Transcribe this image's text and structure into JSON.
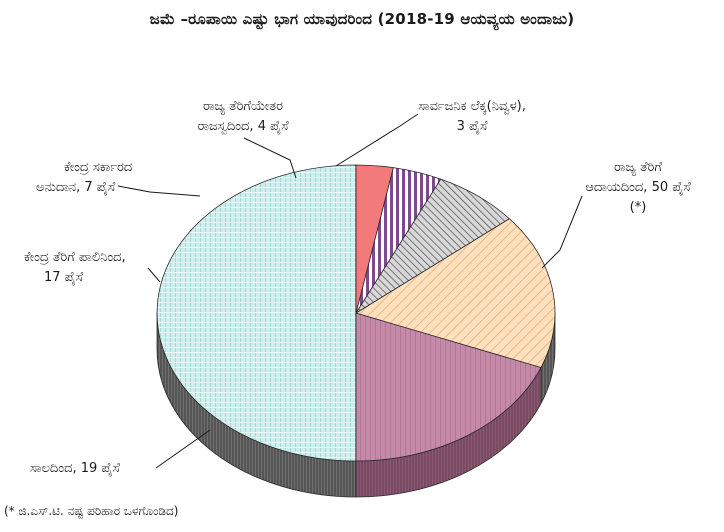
{
  "title": "ಜಮೆ –ರೂಪಾಯಿ ಎಷ್ಟು ಭಾಗ ಯಾವುದರಿಂದ (2018-19 ಆಯವ್ಯಯ ಅಂದಾಜು)",
  "footnote": "(* ಜಿ.ಎಸ್.ಟಿ. ನಷ್ಟ ಪರಿಹಾರ ಒಳಗೊಂಡಿದ)",
  "labels": {
    "state_tax": [
      "ರಾಜ್ಯ ತೆರಿಗೆ",
      "ಆದಾಯದಿಂದ, 50 ಪೈಸೆ",
      "(*)"
    ],
    "borrowings": [
      "ಸಾಲದಿಂದ, 19 ಪೈಸೆ"
    ],
    "central_tax_share": [
      "ಕೇಂದ್ರ ತೆರಿಗೆ ಪಾಲಿನಿಂದ,",
      "17 ಪೈಸೆ"
    ],
    "central_grants": [
      "ಕೇಂದ್ರ ಸರ್ಕಾರದ",
      "ಅನುದಾನ, 7 ಪೈಸೆ"
    ],
    "non_tax_revenue": [
      "ರಾಜ್ಯ ತೆರಿಗೆಯೇತರ",
      "ರಾಜಸ್ವದಿಂದ, 4 ಪೈಸೆ"
    ],
    "public_account": [
      "ಸಾರ್ವಜನಿಕ ಲೆಕ್ಕ(ನಿವ್ವಳ),",
      "3 ಪೈಸೆ"
    ]
  },
  "chart_data": {
    "type": "pie",
    "title": "ಜಮೆ –ರೂಪಾಯಿ ಎಷ್ಟು ಭಾಗ ಯಾವುದರಿಂದ (2018-19 ಆಯವ್ಯಯ ಅಂದಾಜು)",
    "unit": "ಪೈಸೆ",
    "slices": [
      {
        "key": "state_tax",
        "value": 50,
        "color": "#cdeeec"
      },
      {
        "key": "borrowings",
        "value": 19,
        "color": "#c48aa8"
      },
      {
        "key": "central_tax_share",
        "value": 17,
        "color": "#ffd6a8"
      },
      {
        "key": "central_grants",
        "value": 7,
        "color": "#bdbdbd"
      },
      {
        "key": "non_tax_revenue",
        "value": 4,
        "color": "#8f5a9c"
      },
      {
        "key": "public_account",
        "value": 3,
        "color": "#f37a7a"
      }
    ],
    "start_angle_deg": 0,
    "direction": "counterclockwise",
    "style": "3d-pie"
  }
}
